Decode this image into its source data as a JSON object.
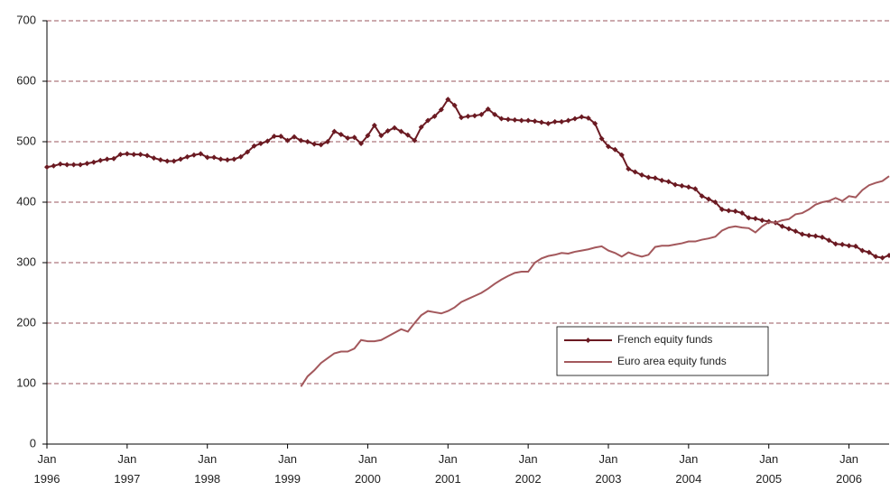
{
  "chart_data": {
    "type": "line",
    "x": [
      "1996-01",
      "1996-02",
      "1996-03",
      "1996-04",
      "1996-05",
      "1996-06",
      "1996-07",
      "1996-08",
      "1996-09",
      "1996-10",
      "1996-11",
      "1996-12",
      "1997-01",
      "1997-02",
      "1997-03",
      "1997-04",
      "1997-05",
      "1997-06",
      "1997-07",
      "1997-08",
      "1997-09",
      "1997-10",
      "1997-11",
      "1997-12",
      "1998-01",
      "1998-02",
      "1998-03",
      "1998-04",
      "1998-05",
      "1998-06",
      "1998-07",
      "1998-08",
      "1998-09",
      "1998-10",
      "1998-11",
      "1998-12",
      "1999-01",
      "1999-02",
      "1999-03",
      "1999-04",
      "1999-05",
      "1999-06",
      "1999-07",
      "1999-08",
      "1999-09",
      "1999-10",
      "1999-11",
      "1999-12",
      "2000-01",
      "2000-02",
      "2000-03",
      "2000-04",
      "2000-05",
      "2000-06",
      "2000-07",
      "2000-08",
      "2000-09",
      "2000-10",
      "2000-11",
      "2000-12",
      "2001-01",
      "2001-02",
      "2001-03",
      "2001-04",
      "2001-05",
      "2001-06",
      "2001-07",
      "2001-08",
      "2001-09",
      "2001-10",
      "2001-11",
      "2001-12",
      "2002-01",
      "2002-02",
      "2002-03",
      "2002-04",
      "2002-05",
      "2002-06",
      "2002-07",
      "2002-08",
      "2002-09",
      "2002-10",
      "2002-11",
      "2002-12",
      "2003-01",
      "2003-02",
      "2003-03",
      "2003-04",
      "2003-05",
      "2003-06",
      "2003-07",
      "2003-08",
      "2003-09",
      "2003-10",
      "2003-11",
      "2003-12",
      "2004-01",
      "2004-02",
      "2004-03",
      "2004-04",
      "2004-05",
      "2004-06",
      "2004-07",
      "2004-08",
      "2004-09",
      "2004-10",
      "2004-11",
      "2004-12",
      "2005-01",
      "2005-02",
      "2005-03",
      "2005-04",
      "2005-05",
      "2005-06",
      "2005-07",
      "2005-08",
      "2005-09",
      "2005-10",
      "2005-11",
      "2005-12",
      "2006-01",
      "2006-02",
      "2006-03",
      "2006-04",
      "2006-05",
      "2006-06",
      "2006-07"
    ],
    "series": [
      {
        "name": "French equity funds",
        "color": "#6b1a22",
        "marker": "diamond",
        "values": [
          458,
          460,
          463,
          462,
          462,
          462,
          464,
          466,
          469,
          471,
          472,
          479,
          480,
          479,
          479,
          477,
          473,
          470,
          468,
          468,
          471,
          475,
          478,
          480,
          474,
          474,
          471,
          470,
          471,
          475,
          483,
          493,
          497,
          501,
          509,
          509,
          502,
          508,
          502,
          500,
          496,
          495,
          500,
          517,
          512,
          506,
          507,
          497,
          510,
          527,
          510,
          518,
          523,
          517,
          511,
          502,
          524,
          535,
          542,
          553,
          570,
          560,
          540,
          542,
          543,
          545,
          554,
          545,
          538,
          537,
          536,
          535,
          535,
          534,
          532,
          530,
          533,
          533,
          535,
          538,
          541,
          539,
          530,
          505,
          492,
          487,
          478,
          455,
          450,
          445,
          441,
          440,
          436,
          434,
          429,
          427,
          425,
          422,
          410,
          405,
          400,
          388,
          386,
          385,
          382,
          374,
          373,
          370,
          368,
          366,
          360,
          356,
          352,
          347,
          345,
          344,
          342,
          337,
          331,
          330,
          328,
          327,
          320,
          317,
          310,
          308,
          312
        ]
      },
      {
        "name": "Euro area equity funds",
        "color": "#a3585c",
        "values": [
          null,
          null,
          null,
          null,
          null,
          null,
          null,
          null,
          null,
          null,
          null,
          null,
          null,
          null,
          null,
          null,
          null,
          null,
          null,
          null,
          null,
          null,
          null,
          null,
          null,
          null,
          null,
          null,
          null,
          null,
          null,
          null,
          null,
          null,
          null,
          null,
          null,
          null,
          95,
          112,
          122,
          134,
          142,
          150,
          153,
          153,
          158,
          172,
          170,
          170,
          172,
          178,
          184,
          190,
          186,
          200,
          213,
          220,
          218,
          216,
          220,
          226,
          235,
          240,
          245,
          250,
          257,
          265,
          272,
          278,
          283,
          285,
          285,
          300,
          307,
          311,
          313,
          316,
          315,
          318,
          320,
          322,
          325,
          327,
          320,
          316,
          310,
          317,
          313,
          310,
          313,
          326,
          328,
          328,
          330,
          332,
          335,
          335,
          338,
          340,
          343,
          353,
          358,
          360,
          358,
          357,
          350,
          360,
          367,
          366,
          370,
          372,
          380,
          382,
          388,
          396,
          400,
          402,
          407,
          402,
          410,
          408,
          420,
          428,
          432,
          435,
          443
        ]
      }
    ],
    "xticks": [
      {
        "value": "1996-01",
        "label": "Jan 1996"
      },
      {
        "value": "1997-01",
        "label": "Jan 1997"
      },
      {
        "value": "1998-01",
        "label": "Jan 1998"
      },
      {
        "value": "1999-01",
        "label": "Jan 1999"
      },
      {
        "value": "2000-01",
        "label": "Jan 2000"
      },
      {
        "value": "2001-01",
        "label": "Jan 2001"
      },
      {
        "value": "2002-01",
        "label": "Jan 2002"
      },
      {
        "value": "2003-01",
        "label": "Jan 2003"
      },
      {
        "value": "2004-01",
        "label": "Jan 2004"
      },
      {
        "value": "2005-01",
        "label": "Jan 2005"
      },
      {
        "value": "2006-01",
        "label": "Jan 2006"
      }
    ],
    "ylim": [
      0,
      700
    ],
    "yticks": [
      0,
      100,
      200,
      300,
      400,
      500,
      600,
      700
    ],
    "grid": true,
    "legend": "lower right"
  }
}
